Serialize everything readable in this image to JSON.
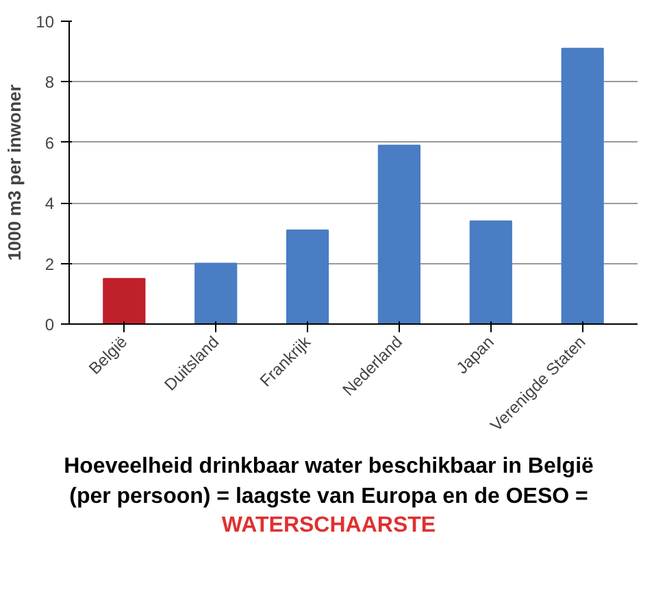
{
  "chart_data": {
    "type": "bar",
    "ylabel": "1000 m3 per inwoner",
    "categories": [
      "België",
      "Duitsland",
      "Frankrijk",
      "Nederland",
      "Japan",
      "Verenigde Staten"
    ],
    "values": [
      1.5,
      2.0,
      3.1,
      5.9,
      3.4,
      9.1
    ],
    "colors": [
      "#c0202a",
      "#4a7dc4",
      "#4a7dc4",
      "#4a7dc4",
      "#4a7dc4",
      "#4a7dc4"
    ],
    "ylim": [
      0,
      10
    ],
    "yticks": [
      0,
      2,
      4,
      6,
      8,
      10
    ],
    "grid": "y",
    "annotations": [
      "Hoeveelheid drinkbaar water beschikbaar in België (per persoon) = laagste van Europa en de OESO =",
      "WATERSCHAARSTE"
    ]
  }
}
